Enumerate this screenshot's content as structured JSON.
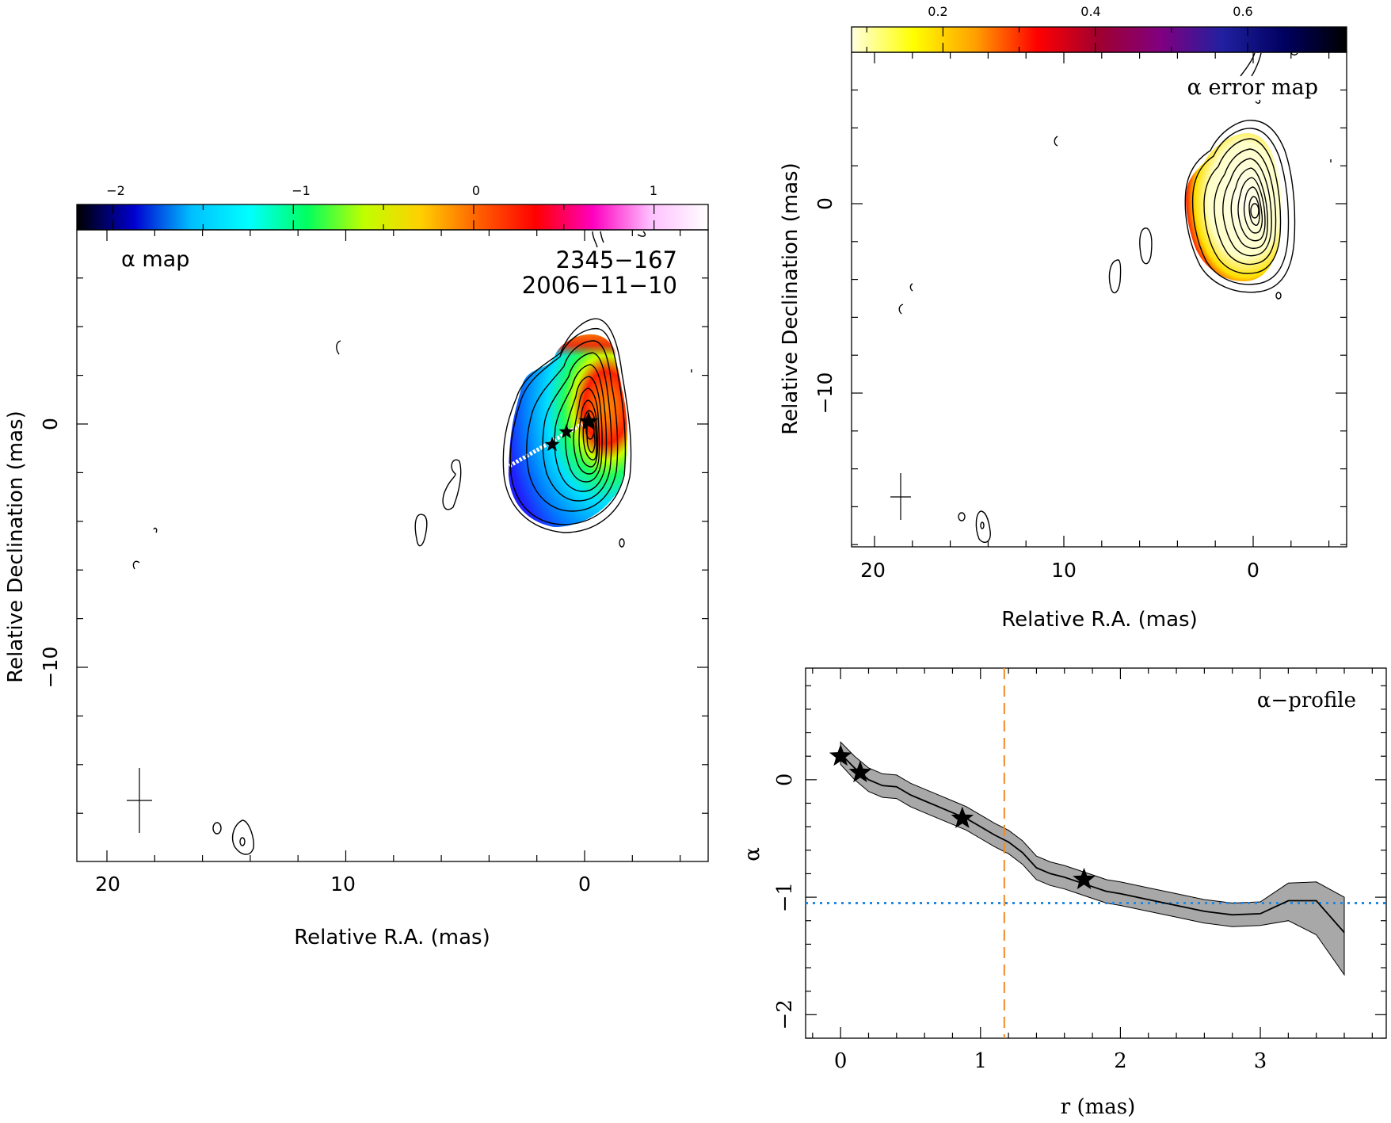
{
  "alpha_map": {
    "label": "α map",
    "source": "2345−167",
    "date": "2006−11−10",
    "xlabel": "Relative R.A. (mas)",
    "ylabel": "Relative Declination (mas)",
    "xticks": [
      "20",
      "10",
      "0"
    ],
    "yticks": [
      "0",
      "−10"
    ],
    "colorbar_ticks": [
      "−2",
      "−1",
      "0",
      "1"
    ],
    "colorbar_range": [
      -2.2,
      1.3
    ],
    "colormap": [
      "#000000",
      "#0000d0",
      "#00c0ff",
      "#00ffff",
      "#00ff60",
      "#c0ff00",
      "#ffd000",
      "#ff6000",
      "#ff0000",
      "#ff00c0",
      "#ffc0ff",
      "#ffffff"
    ]
  },
  "error_map": {
    "label": "α error map",
    "xlabel": "Relative R.A. (mas)",
    "ylabel": "Relative Declination (mas)",
    "xticks": [
      "20",
      "10",
      "0"
    ],
    "yticks": [
      "0",
      "−10"
    ],
    "colorbar_ticks": [
      "0.2",
      "0.4",
      "0.6"
    ],
    "colorbar_range": [
      0.08,
      0.73
    ],
    "colormap": [
      "#ffffe0",
      "#ffff00",
      "#ffa000",
      "#ff0000",
      "#a00030",
      "#800080",
      "#2020a0",
      "#000060",
      "#000000"
    ]
  },
  "chart_data": {
    "type": "line",
    "title": "α−profile",
    "xlabel": "r (mas)",
    "ylabel": "α",
    "xlim": [
      -0.25,
      3.9
    ],
    "ylim": [
      -2.2,
      0.95
    ],
    "xticks": [
      "0",
      "1",
      "2",
      "3"
    ],
    "yticks": [
      "0",
      "−1",
      "−2"
    ],
    "series": [
      {
        "x": [
          0,
          0.1,
          0.2,
          0.3,
          0.4,
          0.5,
          0.6,
          0.7,
          0.8,
          0.9,
          1.0,
          1.1,
          1.2,
          1.3,
          1.4,
          1.5,
          1.6,
          1.7,
          1.8,
          1.9,
          2.0,
          2.2,
          2.4,
          2.6,
          2.8,
          3.0,
          3.2,
          3.4,
          3.6
        ],
        "values": [
          0.22,
          0.1,
          0.0,
          -0.05,
          -0.06,
          -0.13,
          -0.18,
          -0.23,
          -0.28,
          -0.33,
          -0.4,
          -0.47,
          -0.53,
          -0.62,
          -0.75,
          -0.8,
          -0.83,
          -0.87,
          -0.91,
          -0.95,
          -0.97,
          -1.02,
          -1.07,
          -1.12,
          -1.15,
          -1.14,
          -1.03,
          -1.03,
          -1.3
        ],
        "lower": [
          0.13,
          0.0,
          -0.1,
          -0.15,
          -0.16,
          -0.23,
          -0.28,
          -0.33,
          -0.38,
          -0.43,
          -0.5,
          -0.57,
          -0.63,
          -0.72,
          -0.85,
          -0.9,
          -0.93,
          -0.97,
          -1.01,
          -1.05,
          -1.07,
          -1.12,
          -1.17,
          -1.22,
          -1.25,
          -1.24,
          -1.2,
          -1.32,
          -1.66
        ],
        "upper": [
          0.32,
          0.2,
          0.1,
          0.05,
          0.04,
          -0.03,
          -0.08,
          -0.13,
          -0.18,
          -0.23,
          -0.3,
          -0.37,
          -0.43,
          -0.52,
          -0.65,
          -0.7,
          -0.73,
          -0.77,
          -0.81,
          -0.85,
          -0.87,
          -0.92,
          -0.97,
          -1.02,
          -1.05,
          -1.04,
          -0.88,
          -0.87,
          -1.0
        ]
      }
    ],
    "stars": [
      [
        0.0,
        0.2
      ],
      [
        0.14,
        0.06
      ],
      [
        0.87,
        -0.33
      ],
      [
        1.74,
        -0.85
      ]
    ],
    "hline_y": -1.05,
    "vline_x": 1.17,
    "colors": {
      "band": "#a8a8a8",
      "hline": "#1e88e5",
      "vline": "#f08a28"
    }
  }
}
